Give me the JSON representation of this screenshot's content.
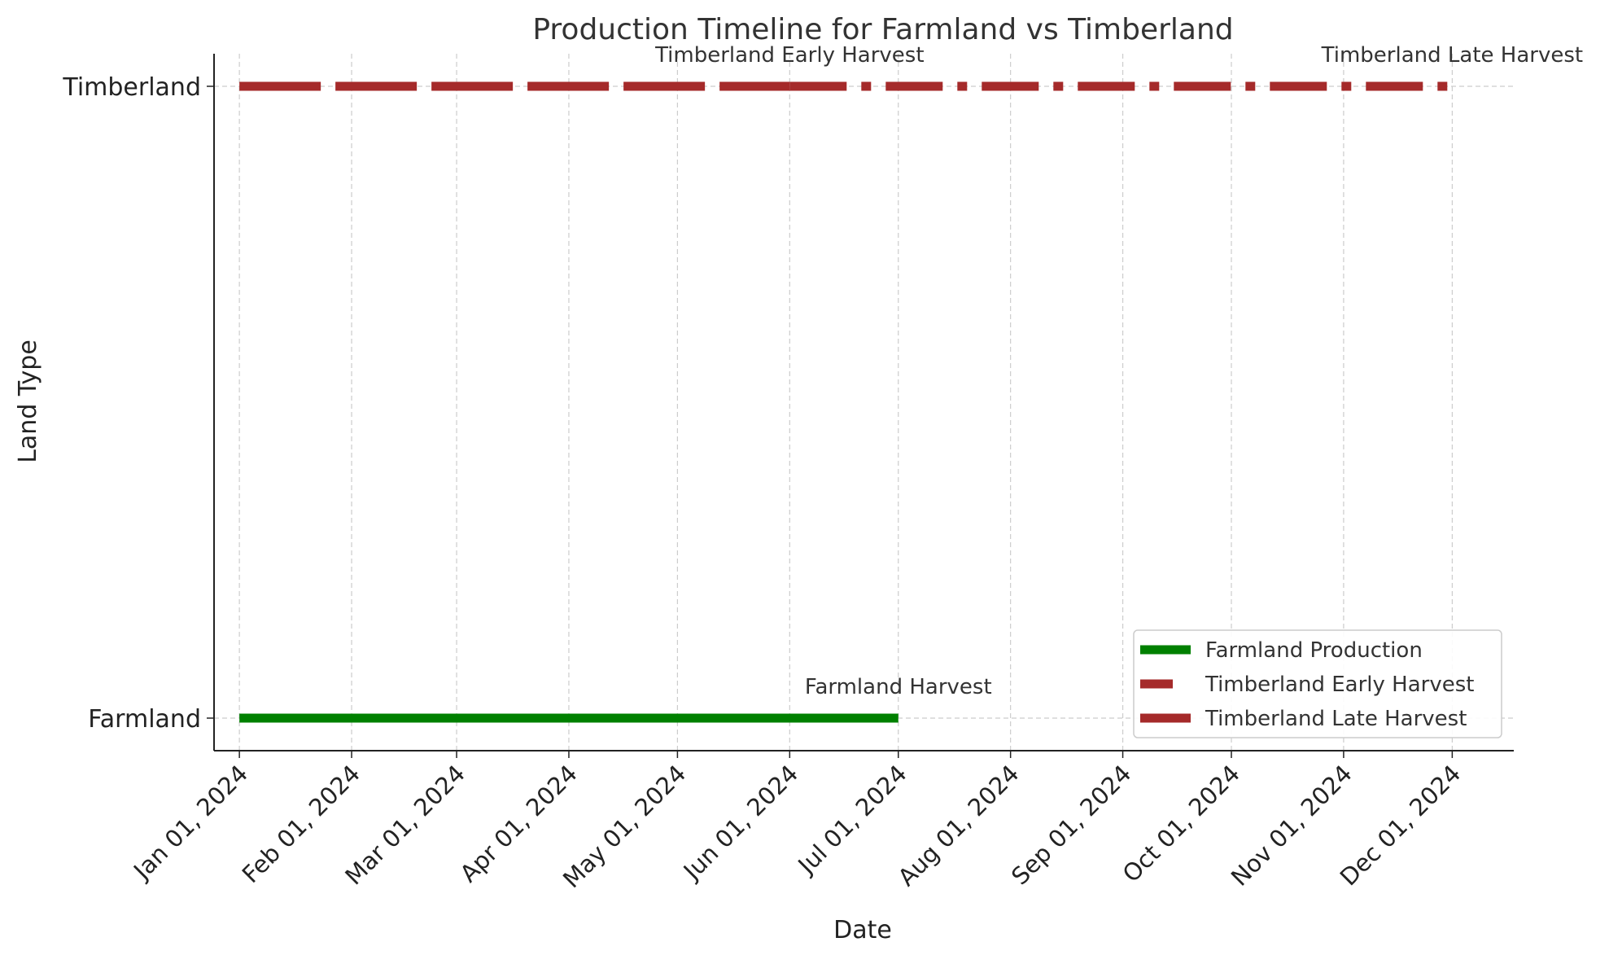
{
  "chart_data": {
    "type": "line",
    "title": "Production Timeline for Farmland vs Timberland",
    "xlabel": "Date",
    "ylabel": "Land Type",
    "x_type": "date",
    "xlim": [
      "2023-12-25",
      "2024-12-18"
    ],
    "x_ticks": [
      {
        "date": "2024-01-01",
        "label": "Jan 01, 2024"
      },
      {
        "date": "2024-02-01",
        "label": "Feb 01, 2024"
      },
      {
        "date": "2024-03-01",
        "label": "Mar 01, 2024"
      },
      {
        "date": "2024-04-01",
        "label": "Apr 01, 2024"
      },
      {
        "date": "2024-05-01",
        "label": "May 01, 2024"
      },
      {
        "date": "2024-06-01",
        "label": "Jun 01, 2024"
      },
      {
        "date": "2024-07-01",
        "label": "Jul 01, 2024"
      },
      {
        "date": "2024-08-01",
        "label": "Aug 01, 2024"
      },
      {
        "date": "2024-09-01",
        "label": "Sep 01, 2024"
      },
      {
        "date": "2024-10-01",
        "label": "Oct 01, 2024"
      },
      {
        "date": "2024-11-01",
        "label": "Nov 01, 2024"
      },
      {
        "date": "2024-12-01",
        "label": "Dec 01, 2024"
      }
    ],
    "y_categories": [
      "Farmland",
      "Timberland"
    ],
    "grid": true,
    "legend_position": "lower-right",
    "series": [
      {
        "name": "Farmland Production",
        "category": "Farmland",
        "x": [
          "2024-01-01",
          "2024-07-01"
        ],
        "color": "#008000",
        "style": "solid"
      },
      {
        "name": "Timberland Early Harvest",
        "category": "Timberland",
        "x": [
          "2024-01-01",
          "2024-06-01"
        ],
        "color": "#a52a2a",
        "style": "dashed"
      },
      {
        "name": "Timberland Late Harvest",
        "category": "Timberland",
        "x": [
          "2024-06-01",
          "2024-12-01"
        ],
        "color": "#a52a2a",
        "style": "dashdot"
      }
    ],
    "annotations": [
      {
        "text": "Farmland Harvest",
        "date": "2024-07-01",
        "category": "Farmland"
      },
      {
        "text": "Timberland Early Harvest",
        "date": "2024-06-01",
        "category": "Timberland"
      },
      {
        "text": "Timberland Late Harvest",
        "date": "2024-12-01",
        "category": "Timberland"
      }
    ]
  }
}
